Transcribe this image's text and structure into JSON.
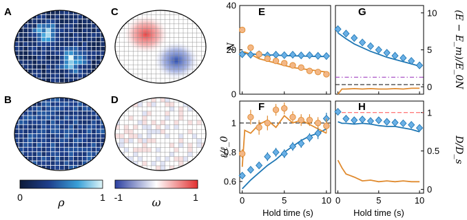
{
  "panels": {
    "A": "A",
    "B": "B",
    "C": "C",
    "D": "D",
    "E": "E",
    "F": "F",
    "G": "G",
    "H": "H"
  },
  "colorbars": {
    "rho": {
      "min": "0",
      "max": "1",
      "symbol": "ρ"
    },
    "omega": {
      "min": "-1",
      "max": "1",
      "symbol": "ω"
    }
  },
  "colors": {
    "blue": "#1f77b4",
    "blue_marker": "#6ab0e6",
    "orange": "#e08a2e",
    "orange_marker": "#f3b786",
    "red_dash": "#ff4d4d",
    "purple_dashdot": "#a040c0",
    "black_dash": "#222222"
  },
  "chart_data": [
    {
      "panel": "E",
      "type": "line",
      "ylabel": "N",
      "xlabel": "",
      "xlim": [
        -0.3,
        10.5
      ],
      "ylim": [
        0,
        40
      ],
      "yticks": [
        "0",
        "20",
        "40"
      ],
      "xticks": [],
      "series": [
        {
          "kind": "markers",
          "color": "blue",
          "x": [
            0,
            1,
            2,
            3,
            4,
            5,
            6,
            7,
            8,
            9,
            10
          ],
          "y": [
            18,
            17.8,
            18,
            17.5,
            17.8,
            17.6,
            17.8,
            17.5,
            17.6,
            17.3,
            17.2
          ]
        },
        {
          "kind": "line",
          "color": "blue",
          "x": [
            0,
            1,
            2,
            3,
            4,
            5,
            6,
            7,
            8,
            9,
            10
          ],
          "y": [
            18.5,
            18.2,
            17.9,
            17.7,
            17.6,
            17.4,
            17.3,
            17.2,
            17.1,
            17.0,
            17.0
          ]
        },
        {
          "kind": "markers",
          "color": "orange",
          "x": [
            0,
            1,
            2,
            3,
            4,
            5,
            6,
            7,
            8,
            9,
            10
          ],
          "y": [
            29,
            21,
            18,
            16,
            15,
            14,
            13,
            12,
            10.5,
            10,
            9
          ]
        },
        {
          "kind": "line",
          "color": "orange",
          "x": [
            0,
            0.3,
            1,
            2,
            3,
            4,
            5,
            6,
            7,
            8,
            9,
            10
          ],
          "y": [
            19,
            19,
            18,
            16,
            15,
            14,
            13,
            12,
            11.5,
            11,
            10.5,
            10
          ]
        }
      ]
    },
    {
      "panel": "G",
      "type": "line",
      "ylabel": "(E − E_m)/E_0N",
      "xlabel": "",
      "xlim": [
        -0.3,
        10.5
      ],
      "ylim": [
        -1,
        11
      ],
      "yticks": [
        "0",
        "5",
        "10"
      ],
      "xticks": [],
      "series": [
        {
          "kind": "markers",
          "color": "blue",
          "x": [
            0,
            1,
            2,
            3,
            4,
            5,
            6,
            7,
            8,
            9,
            10
          ],
          "y": [
            7.8,
            7.2,
            6.6,
            6.0,
            5.5,
            5.0,
            4.6,
            4.2,
            3.9,
            3.5,
            2.9
          ]
        },
        {
          "kind": "line",
          "color": "blue",
          "x": [
            0,
            1,
            2,
            3,
            4,
            5,
            6,
            7,
            8,
            9,
            10
          ],
          "y": [
            7.3,
            6.5,
            5.8,
            5.3,
            4.8,
            4.4,
            4.0,
            3.7,
            3.4,
            3.1,
            2.8
          ]
        },
        {
          "kind": "line",
          "color": "orange",
          "x": [
            0,
            0.5,
            1,
            2,
            3,
            4,
            5,
            6,
            7,
            8,
            9,
            10
          ],
          "y": [
            -1.0,
            -0.3,
            -0.3,
            -0.25,
            -0.3,
            -0.25,
            -0.3,
            -0.3,
            -0.25,
            -0.3,
            -0.2,
            -0.2
          ]
        },
        {
          "kind": "hline",
          "color": "purple_dashdot",
          "y": 1.3
        },
        {
          "kind": "hline",
          "color": "black_dash",
          "y": 0.3
        }
      ]
    },
    {
      "panel": "F",
      "type": "line",
      "ylabel": "ℓ/ℓ_0",
      "xlabel": "Hold time (s)",
      "xlim": [
        -0.3,
        10.5
      ],
      "ylim": [
        0.52,
        1.15
      ],
      "yticks": [
        "0.6",
        "0.8",
        "1"
      ],
      "xticks": [
        "0",
        "5",
        "10"
      ],
      "series": [
        {
          "kind": "markers",
          "color": "blue",
          "x": [
            0,
            1,
            2,
            3,
            4,
            5,
            6,
            7,
            8,
            9,
            10
          ],
          "y": [
            0.64,
            0.68,
            0.71,
            0.77,
            0.8,
            0.79,
            0.84,
            0.86,
            0.9,
            0.93,
            1.03
          ],
          "err": [
            0.02,
            0.02,
            0.02,
            0.03,
            0.03,
            0.03,
            0.03,
            0.03,
            0.03,
            0.04,
            0.04
          ]
        },
        {
          "kind": "line",
          "color": "blue",
          "x": [
            0,
            0.5,
            1,
            2,
            3,
            4,
            5,
            6,
            7,
            8,
            9,
            10
          ],
          "y": [
            0.55,
            0.58,
            0.61,
            0.66,
            0.71,
            0.75,
            0.8,
            0.84,
            0.88,
            0.91,
            0.93,
            0.96
          ]
        },
        {
          "kind": "markers",
          "color": "orange",
          "x": [
            0,
            1,
            2,
            3,
            4,
            5,
            6,
            7,
            8,
            9,
            10
          ],
          "y": [
            0.79,
            1.04,
            0.97,
            1.0,
            1.09,
            1.1,
            1.04,
            1.02,
            1.02,
            1.0,
            0.98
          ],
          "err": [
            0.03,
            0.05,
            0.05,
            0.05,
            0.04,
            0.04,
            0.04,
            0.04,
            0.04,
            0.04,
            0.05
          ]
        },
        {
          "kind": "line",
          "color": "orange",
          "x": [
            0,
            0.3,
            1,
            2,
            3,
            4,
            5,
            6,
            7,
            8,
            9,
            10
          ],
          "y": [
            0.7,
            0.95,
            0.93,
            0.99,
            1.02,
            0.97,
            1.05,
            1.0,
            1.02,
            0.99,
            0.96,
            0.93
          ]
        },
        {
          "kind": "hline",
          "color": "black_dash",
          "y": 1.0
        }
      ]
    },
    {
      "panel": "H",
      "type": "line",
      "ylabel": "D/D_s",
      "xlabel": "Hold time (s)",
      "xlim": [
        -0.3,
        10.5
      ],
      "ylim": [
        -0.05,
        1.15
      ],
      "yticks": [
        "0",
        "0.5",
        "1"
      ],
      "xticks": [
        "0",
        "5",
        "10"
      ],
      "series": [
        {
          "kind": "markers",
          "color": "blue",
          "x": [
            0,
            1,
            2,
            3,
            4,
            5,
            6,
            7,
            8,
            9,
            10
          ],
          "y": [
            1.01,
            0.92,
            0.9,
            0.91,
            0.89,
            0.9,
            0.88,
            0.87,
            0.86,
            0.84,
            0.8
          ]
        },
        {
          "kind": "line",
          "color": "blue",
          "x": [
            0,
            0.5,
            1,
            2,
            3,
            4,
            5,
            6,
            7,
            8,
            9,
            10
          ],
          "y": [
            0.88,
            0.86,
            0.86,
            0.85,
            0.86,
            0.85,
            0.83,
            0.82,
            0.82,
            0.8,
            0.78,
            0.75
          ]
        },
        {
          "kind": "line",
          "color": "orange",
          "x": [
            0,
            0.5,
            1,
            2,
            3,
            4,
            5,
            6,
            7,
            8,
            9,
            10
          ],
          "y": [
            0.38,
            0.28,
            0.2,
            0.16,
            0.11,
            0.12,
            0.1,
            0.11,
            0.1,
            0.11,
            0.1,
            0.1
          ]
        },
        {
          "kind": "hline",
          "color": "red_dash",
          "y": 1.0
        }
      ]
    }
  ]
}
